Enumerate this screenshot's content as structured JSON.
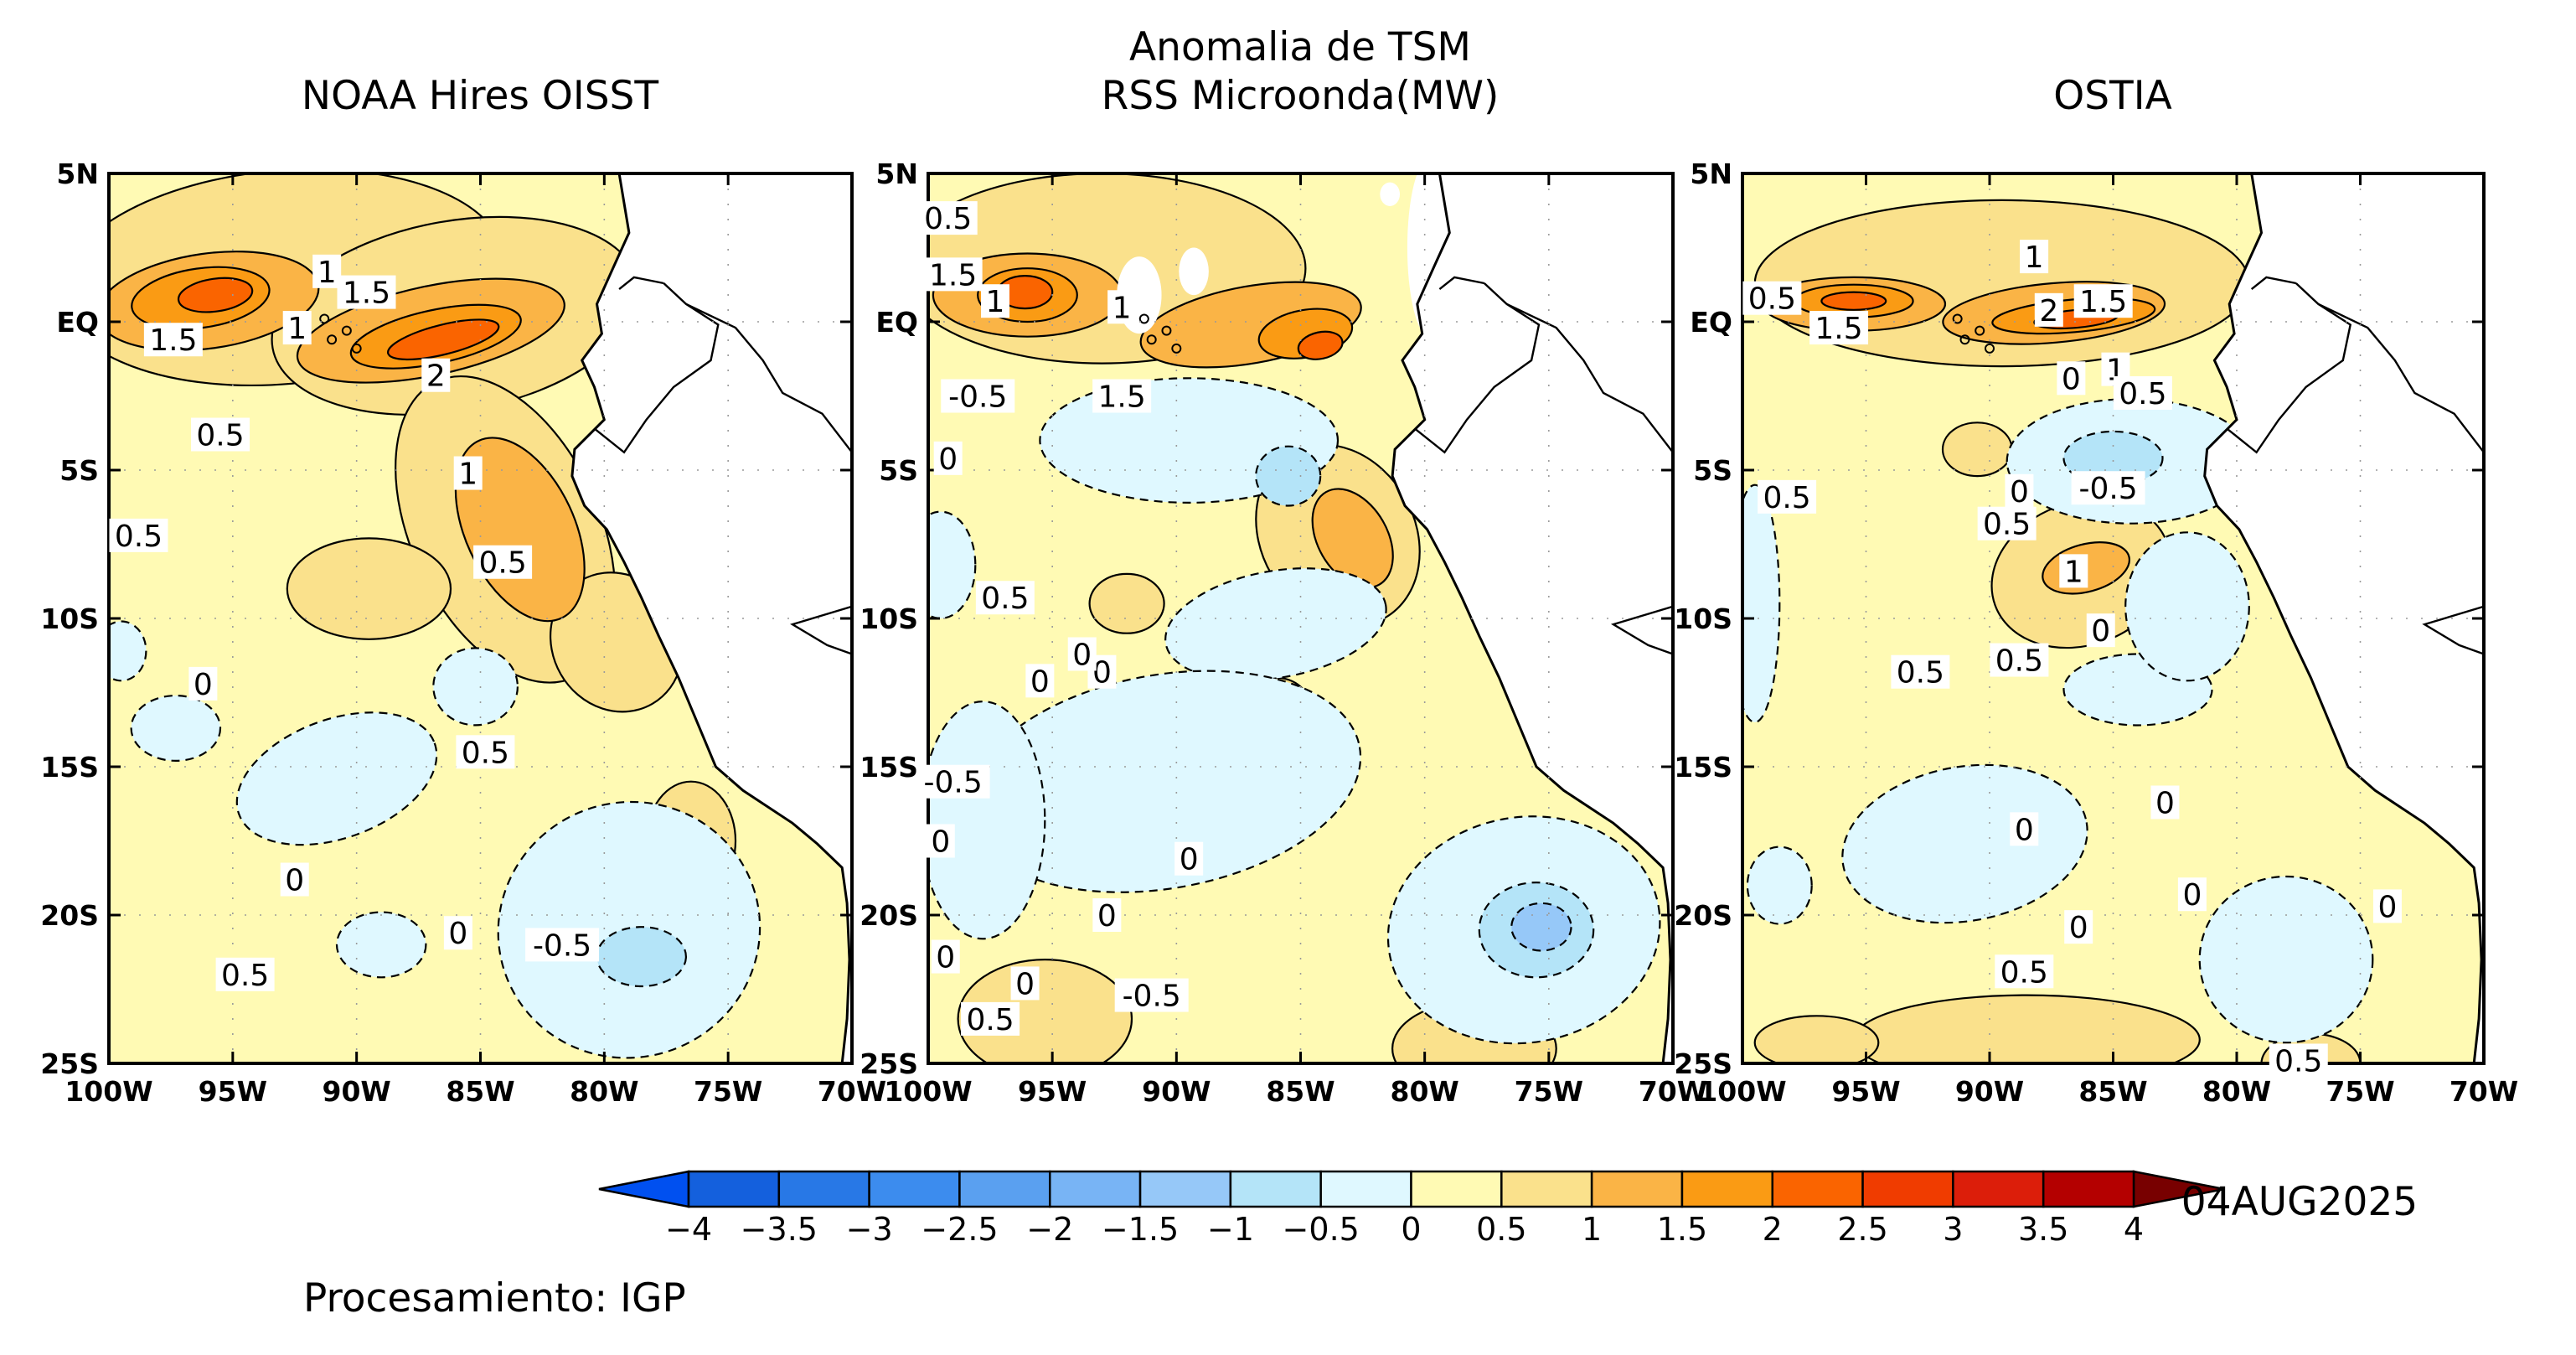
{
  "figure": {
    "title_lines": [
      "Anomalia de TSM",
      "RSS Microonda(MW)"
    ],
    "date": "04AUG2025",
    "credit": "Procesamiento: IGP"
  },
  "panels": [
    {
      "title": "NOAA Hires OISST",
      "contour_labels": [
        {
          "text": "1",
          "lon": -91.2,
          "lat": 1.7
        },
        {
          "text": "1.5",
          "lon": -89.6,
          "lat": 1.0
        },
        {
          "text": "1.5",
          "lon": -97.4,
          "lat": -0.6
        },
        {
          "text": "1",
          "lon": -92.4,
          "lat": -0.2
        },
        {
          "text": "2",
          "lon": -86.8,
          "lat": -1.8
        },
        {
          "text": "0.5",
          "lon": -95.5,
          "lat": -3.8
        },
        {
          "text": "1",
          "lon": -85.5,
          "lat": -5.1
        },
        {
          "text": "0.5",
          "lon": -98.8,
          "lat": -7.2
        },
        {
          "text": "0.5",
          "lon": -84.1,
          "lat": -8.1
        },
        {
          "text": "0",
          "lon": -96.2,
          "lat": -12.2
        },
        {
          "text": "0.5",
          "lon": -84.8,
          "lat": -14.5
        },
        {
          "text": "0",
          "lon": -92.5,
          "lat": -18.8
        },
        {
          "text": "0",
          "lon": -85.9,
          "lat": -20.6
        },
        {
          "text": "-0.5",
          "lon": -81.7,
          "lat": -21.0
        },
        {
          "text": "0.5",
          "lon": -94.5,
          "lat": -22.0
        }
      ]
    },
    {
      "title": "",
      "contour_labels": [
        {
          "text": "0.5",
          "lon": -99.2,
          "lat": 3.5
        },
        {
          "text": "1.5",
          "lon": -99.0,
          "lat": 1.6
        },
        {
          "text": "1",
          "lon": -97.3,
          "lat": 0.7
        },
        {
          "text": "1",
          "lon": -92.2,
          "lat": 0.5
        },
        {
          "text": "-0.5",
          "lon": -98.0,
          "lat": -2.5
        },
        {
          "text": "1.5",
          "lon": -92.2,
          "lat": -2.5
        },
        {
          "text": "0",
          "lon": -99.2,
          "lat": -4.6
        },
        {
          "text": "0.5",
          "lon": -96.9,
          "lat": -9.3
        },
        {
          "text": "0",
          "lon": -93.0,
          "lat": -11.8
        },
        {
          "text": "0",
          "lon": -95.5,
          "lat": -12.1
        },
        {
          "text": "0",
          "lon": -93.8,
          "lat": -11.2
        },
        {
          "text": "-0.5",
          "lon": -99.0,
          "lat": -15.5
        },
        {
          "text": "0",
          "lon": -89.5,
          "lat": -18.1
        },
        {
          "text": "0",
          "lon": -99.5,
          "lat": -17.5
        },
        {
          "text": "0",
          "lon": -92.8,
          "lat": -20.0
        },
        {
          "text": "0",
          "lon": -99.3,
          "lat": -21.4
        },
        {
          "text": "0",
          "lon": -96.1,
          "lat": -22.3
        },
        {
          "text": "0.5",
          "lon": -97.5,
          "lat": -23.5
        },
        {
          "text": "-0.5",
          "lon": -91.0,
          "lat": -22.7
        }
      ]
    },
    {
      "title": "OSTIA",
      "contour_labels": [
        {
          "text": "1",
          "lon": -88.2,
          "lat": 2.2
        },
        {
          "text": "0.5",
          "lon": -98.8,
          "lat": 0.8
        },
        {
          "text": "2",
          "lon": -87.6,
          "lat": 0.4
        },
        {
          "text": "1.5",
          "lon": -85.4,
          "lat": 0.7
        },
        {
          "text": "1.5",
          "lon": -96.1,
          "lat": -0.2
        },
        {
          "text": "0",
          "lon": -86.7,
          "lat": -1.9
        },
        {
          "text": "1",
          "lon": -84.9,
          "lat": -1.6
        },
        {
          "text": "0.5",
          "lon": -83.8,
          "lat": -2.4
        },
        {
          "text": "0.5",
          "lon": -98.2,
          "lat": -5.9
        },
        {
          "text": "0",
          "lon": -88.8,
          "lat": -5.7
        },
        {
          "text": "-0.5",
          "lon": -85.2,
          "lat": -5.6
        },
        {
          "text": "0.5",
          "lon": -89.3,
          "lat": -6.8
        },
        {
          "text": "1",
          "lon": -86.6,
          "lat": -8.4
        },
        {
          "text": "0",
          "lon": -85.5,
          "lat": -10.4
        },
        {
          "text": "0.5",
          "lon": -92.8,
          "lat": -11.8
        },
        {
          "text": "0.5",
          "lon": -88.8,
          "lat": -11.4
        },
        {
          "text": "0",
          "lon": -88.6,
          "lat": -17.1
        },
        {
          "text": "0",
          "lon": -82.9,
          "lat": -16.2
        },
        {
          "text": "0",
          "lon": -86.4,
          "lat": -20.4
        },
        {
          "text": "0",
          "lon": -81.8,
          "lat": -19.3
        },
        {
          "text": "0",
          "lon": -73.9,
          "lat": -19.7
        },
        {
          "text": "0.5",
          "lon": -88.6,
          "lat": -21.9
        },
        {
          "text": "0.5",
          "lon": -77.5,
          "lat": -24.9
        }
      ]
    }
  ],
  "lon_ticks": [
    "100W",
    "95W",
    "90W",
    "85W",
    "80W",
    "75W",
    "70W"
  ],
  "lat_ticks": [
    "5N",
    "EQ",
    "5S",
    "10S",
    "15S",
    "20S",
    "25S"
  ],
  "lon_range": [
    -100,
    -70
  ],
  "lat_range": [
    -25,
    5
  ],
  "colorbar": {
    "labels": [
      "−4",
      "−3.5",
      "−3",
      "−2.5",
      "−2",
      "−1.5",
      "−1",
      "−0.5",
      "0",
      "0.5",
      "1",
      "1.5",
      "2",
      "2.5",
      "3",
      "3.5",
      "4"
    ],
    "colors": [
      "#1460dd",
      "#2878e6",
      "#3c8cee",
      "#5aa0f0",
      "#78b4f5",
      "#96c8f8",
      "#b4e4f8",
      "#dff8ff",
      "#fffab4",
      "#fae18c",
      "#fab446",
      "#fa9b14",
      "#fa6400",
      "#f03c00",
      "#dc1e0a",
      "#b40000"
    ]
  },
  "colors": {
    "land": "#ffffff",
    "ocean_base": "#fffab4",
    "cool": "#dff8ff",
    "warm1": "#fae18c",
    "warm2": "#fab446",
    "warm3": "#fa9b14",
    "warm4": "#fa6400",
    "warm5": "#f03c00",
    "cool2": "#b4e4f8",
    "cool3": "#96c8f8"
  }
}
